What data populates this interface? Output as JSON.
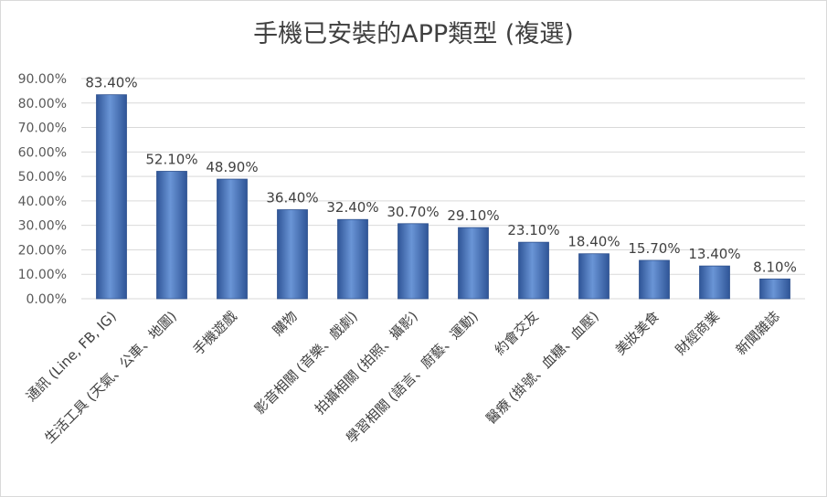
{
  "chart_data": {
    "type": "bar",
    "title": "手機已安裝的APP類型 (複選)",
    "categories": [
      "通訊 (Line, FB, IG)",
      "生活工具 (天氣、公車、地圖)",
      "手機遊戲",
      "購物",
      "影音相關 (音樂、戲劇)",
      "拍攝相關 (拍照、攝影)",
      "學習相關 (語言、廚藝、運動)",
      "約會交友",
      "醫療 (掛號、血糖、血壓)",
      "美妝美食",
      "財經商業",
      "新聞雜誌"
    ],
    "values": [
      83.4,
      52.1,
      48.9,
      36.4,
      32.4,
      30.7,
      29.1,
      23.1,
      18.4,
      15.7,
      13.4,
      8.1
    ],
    "value_labels": [
      "83.40%",
      "52.10%",
      "48.90%",
      "36.40%",
      "32.40%",
      "30.70%",
      "29.10%",
      "23.10%",
      "18.40%",
      "15.70%",
      "13.40%",
      "8.10%"
    ],
    "y_ticks": [
      "0.00%",
      "10.00%",
      "20.00%",
      "30.00%",
      "40.00%",
      "50.00%",
      "60.00%",
      "70.00%",
      "80.00%",
      "90.00%"
    ],
    "ylim": [
      0,
      90
    ],
    "grid": true,
    "legend": "none",
    "colors": {
      "bar_light": "#7ea6dc",
      "bar_mid": "#4f7cc2",
      "bar_dark": "#2f5597",
      "grid": "#d9d9d9",
      "title": "#404040"
    }
  }
}
